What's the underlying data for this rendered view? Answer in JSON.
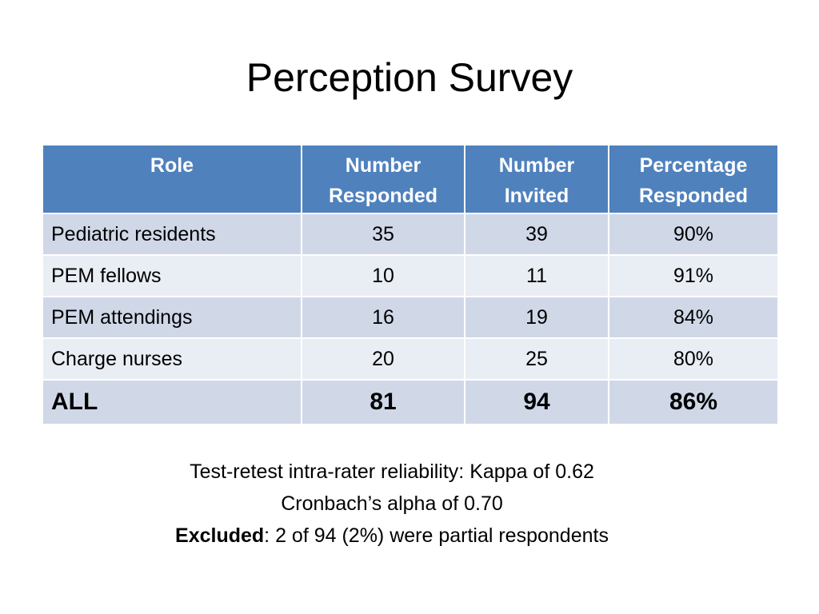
{
  "slide": {
    "title": "Perception Survey"
  },
  "table": {
    "headers": [
      [
        "Role"
      ],
      [
        "Number",
        "Responded"
      ],
      [
        "Number",
        "Invited"
      ],
      [
        "Percentage",
        "Responded"
      ]
    ],
    "rows": [
      [
        "Pediatric residents",
        "35",
        "39",
        "90%"
      ],
      [
        "PEM fellows",
        "10",
        "11",
        "91%"
      ],
      [
        "PEM attendings",
        "16",
        "19",
        "84%"
      ],
      [
        "Charge nurses",
        "20",
        "25",
        "80%"
      ]
    ],
    "total": [
      "ALL",
      "81",
      "94",
      "86%"
    ]
  },
  "notes": {
    "line1": "Test-retest intra-rater reliability:  Kappa of 0.62",
    "line2": "Cronbach’s alpha of 0.70",
    "line3_bold": "Excluded",
    "line3_rest": ": 2 of 94 (2%) were partial respondents"
  },
  "colors": {
    "header_bg": "#4f81bd",
    "row_odd_bg": "#d0d8e8",
    "row_even_bg": "#e9edf4"
  }
}
